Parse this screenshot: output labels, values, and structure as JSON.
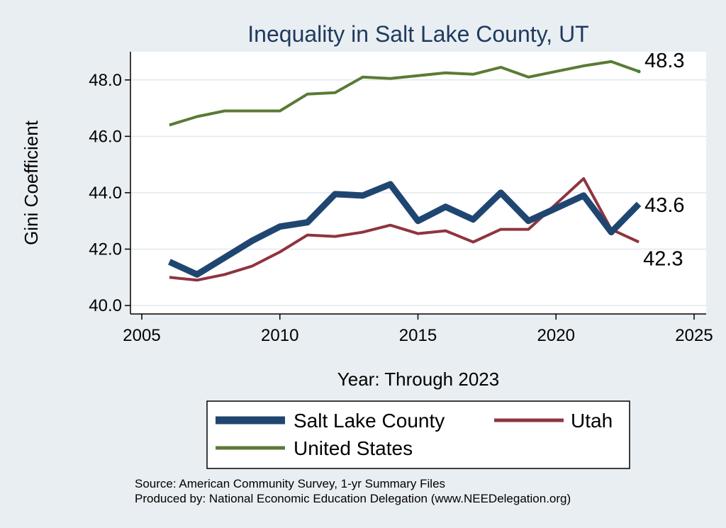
{
  "chart_data": {
    "type": "line",
    "title": "Inequality in Salt Lake County, UT",
    "xlabel": "Year: Through 2023",
    "ylabel": "Gini Coefficient",
    "xlim": [
      2005,
      2025
    ],
    "ylim": [
      39.7,
      49.0
    ],
    "x_ticks": [
      2005,
      2010,
      2015,
      2020,
      2025
    ],
    "y_ticks": [
      40.0,
      42.0,
      44.0,
      46.0,
      48.0
    ],
    "y_tick_labels": [
      "40.0",
      "42.0",
      "44.0",
      "46.0",
      "48.0"
    ],
    "grid": true,
    "legend_position": "bottom",
    "x": [
      2006,
      2007,
      2008,
      2009,
      2010,
      2011,
      2012,
      2013,
      2014,
      2015,
      2016,
      2017,
      2018,
      2019,
      2020,
      2021,
      2022,
      2023
    ],
    "series": [
      {
        "name": "Salt Lake County",
        "color": "#1f4670",
        "values": [
          41.55,
          41.1,
          41.7,
          42.3,
          42.8,
          42.95,
          43.95,
          43.9,
          44.3,
          43.0,
          43.5,
          43.05,
          44.0,
          43.0,
          43.45,
          43.9,
          42.6,
          43.6
        ]
      },
      {
        "name": "Utah",
        "color": "#8f3440",
        "values": [
          41.0,
          40.9,
          41.1,
          41.4,
          41.9,
          42.5,
          42.45,
          42.6,
          42.85,
          42.55,
          42.65,
          42.25,
          42.7,
          42.7,
          43.6,
          44.5,
          42.7,
          42.25
        ]
      },
      {
        "name": "United States",
        "color": "#5b7a35",
        "values": [
          46.4,
          46.7,
          46.9,
          46.9,
          46.9,
          47.5,
          47.55,
          48.1,
          48.05,
          48.15,
          48.25,
          48.2,
          48.45,
          48.1,
          48.3,
          48.5,
          48.65,
          48.3
        ]
      }
    ],
    "annotations": [
      {
        "series": "United States",
        "x": 2023,
        "value": 48.3,
        "text": "48.3"
      },
      {
        "series": "Salt Lake County",
        "x": 2023,
        "value": 43.6,
        "text": "43.6"
      },
      {
        "series": "Utah",
        "x": 2023,
        "value": 42.25,
        "text": "42.3"
      }
    ],
    "source_lines": [
      "Source: American Community Survey, 1-yr Summary Files",
      "Produced by: National Economic Education Delegation (www.NEEDelegation.org)"
    ]
  }
}
